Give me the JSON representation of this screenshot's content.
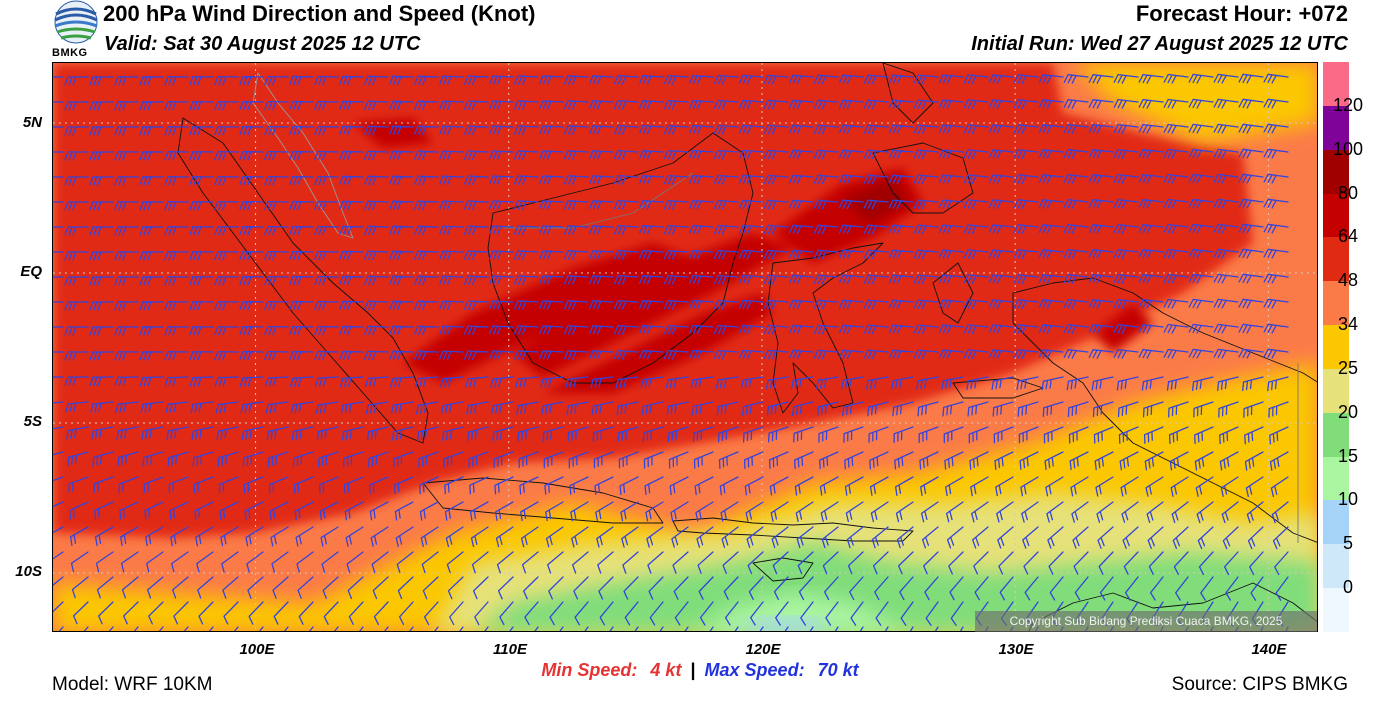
{
  "header": {
    "title": "200 hPa Wind Direction and Speed (Knot)",
    "valid": "Valid: Sat 30 August 2025 12 UTC",
    "forecast_hour": "Forecast Hour: +072",
    "initial_run": "Initial Run: Wed 27 August 2025 12 UTC",
    "logo_text": "BMKG"
  },
  "map": {
    "lon_range": [
      92,
      142
    ],
    "lat_range": [
      -12,
      7
    ],
    "lat_labels": [
      {
        "lat": 5,
        "text": "5N"
      },
      {
        "lat": 0,
        "text": "EQ"
      },
      {
        "lat": -5,
        "text": "5S"
      },
      {
        "lat": -10,
        "text": "10S"
      }
    ],
    "lon_labels": [
      {
        "lon": 100,
        "text": "100E"
      },
      {
        "lon": 110,
        "text": "110E"
      },
      {
        "lon": 120,
        "text": "120E"
      },
      {
        "lon": 130,
        "text": "130E"
      },
      {
        "lon": 140,
        "text": "140E"
      }
    ],
    "barb_color": "#3344dd"
  },
  "colorbar": {
    "colors": [
      "#f0f8ff",
      "#cfe8f8",
      "#a6d4f8",
      "#aaf5a0",
      "#80dd7a",
      "#e6e178",
      "#fbc700",
      "#fb7b48",
      "#e12a12",
      "#c40000",
      "#a00000",
      "#7f0399",
      "#fb6a86"
    ],
    "labels": [
      "0",
      "5",
      "10",
      "15",
      "20",
      "25",
      "34",
      "48",
      "64",
      "80",
      "100",
      "120"
    ]
  },
  "speed": {
    "min_label": "Min Speed:",
    "min_value": "4 kt",
    "separator": "|",
    "max_label": "Max Speed:",
    "max_value": "70 kt",
    "min_color": "#e63232",
    "max_color": "#2233dd"
  },
  "copyright": "Copyright Sub Bidang Prediksi Cuaca BMKG, 2025",
  "footer": {
    "model": "Model: WRF 10KM",
    "source": "Source: CIPS BMKG"
  }
}
